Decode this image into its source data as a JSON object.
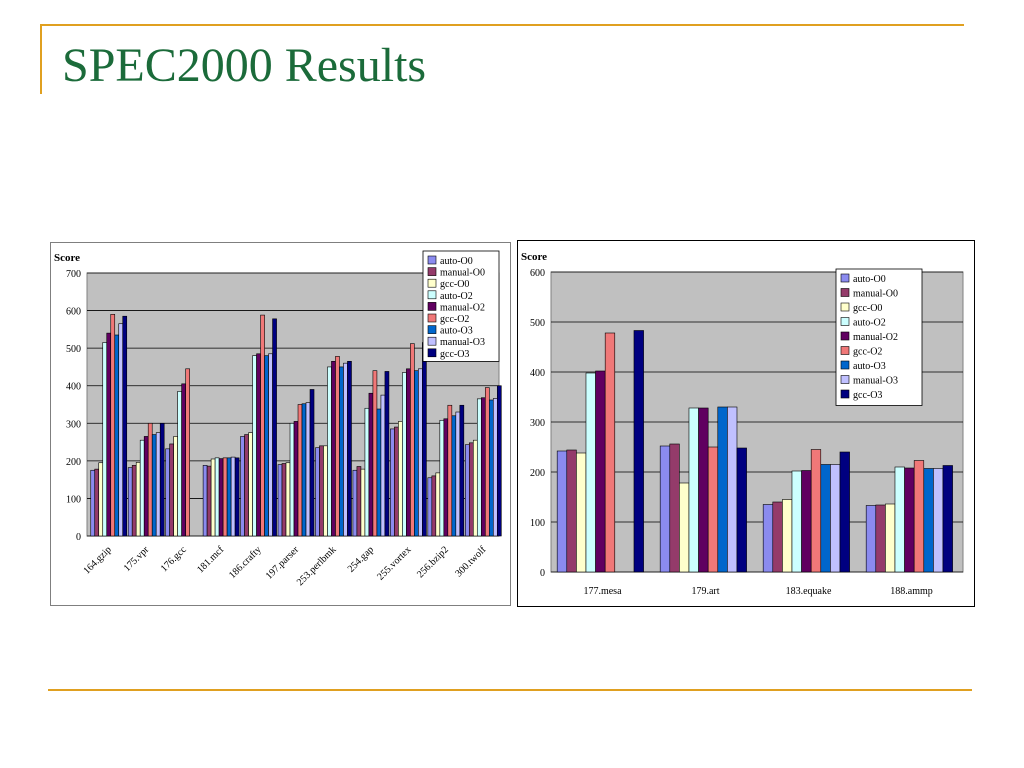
{
  "slide": {
    "title": "SPEC2000 Results"
  },
  "chart_data": [
    {
      "type": "bar",
      "ylabel": "Score",
      "ylim": [
        0,
        700
      ],
      "yticks": [
        0,
        100,
        200,
        300,
        400,
        500,
        600,
        700
      ],
      "grid": true,
      "legend_position": "top-right",
      "categories": [
        "164.gzip",
        "175.vpr",
        "176.gcc",
        "181.mcf",
        "186.crafty",
        "197.parser",
        "253.perlbmk",
        "254.gap",
        "255.vortex",
        "256.bzip2",
        "300.twolf"
      ],
      "series": [
        {
          "name": "auto-O0",
          "color": "#8b8bef",
          "values": [
            175,
            182,
            232,
            188,
            265,
            190,
            235,
            175,
            285,
            155,
            243
          ]
        },
        {
          "name": "manual-O0",
          "color": "#943b6a",
          "values": [
            178,
            188,
            245,
            186,
            270,
            193,
            240,
            185,
            290,
            160,
            248
          ]
        },
        {
          "name": "gcc-O0",
          "color": "#ffffcc",
          "values": [
            195,
            196,
            265,
            205,
            275,
            195,
            240,
            178,
            305,
            168,
            255
          ]
        },
        {
          "name": "auto-O2",
          "color": "#ccffff",
          "values": [
            515,
            255,
            385,
            208,
            480,
            300,
            450,
            340,
            435,
            308,
            365
          ]
        },
        {
          "name": "manual-O2",
          "color": "#600060",
          "values": [
            540,
            265,
            405,
            206,
            485,
            305,
            465,
            380,
            445,
            312,
            368
          ]
        },
        {
          "name": "gcc-O2",
          "color": "#f07878",
          "values": [
            590,
            300,
            445,
            208,
            588,
            350,
            478,
            440,
            512,
            348,
            395
          ]
        },
        {
          "name": "auto-O3",
          "color": "#0066cc",
          "values": [
            535,
            270,
            0,
            208,
            480,
            352,
            450,
            338,
            440,
            320,
            362
          ]
        },
        {
          "name": "manual-O3",
          "color": "#c0c0ff",
          "values": [
            565,
            275,
            0,
            210,
            485,
            355,
            460,
            375,
            445,
            330,
            366
          ]
        },
        {
          "name": "gcc-O3",
          "color": "#000080",
          "values": [
            585,
            300,
            0,
            208,
            578,
            390,
            465,
            438,
            515,
            348,
            400
          ]
        }
      ]
    },
    {
      "type": "bar",
      "ylabel": "Score",
      "ylim": [
        0,
        600
      ],
      "yticks": [
        0,
        100,
        200,
        300,
        400,
        500,
        600
      ],
      "grid": true,
      "legend_position": "top-right",
      "categories": [
        "177.mesa",
        "179.art",
        "183.equake",
        "188.ammp"
      ],
      "series": [
        {
          "name": "auto-O0",
          "color": "#8b8bef",
          "values": [
            242,
            252,
            135,
            133
          ]
        },
        {
          "name": "manual-O0",
          "color": "#943b6a",
          "values": [
            244,
            256,
            140,
            134
          ]
        },
        {
          "name": "gcc-O0",
          "color": "#ffffcc",
          "values": [
            238,
            178,
            145,
            136
          ]
        },
        {
          "name": "auto-O2",
          "color": "#ccffff",
          "values": [
            398,
            328,
            202,
            210
          ]
        },
        {
          "name": "manual-O2",
          "color": "#600060",
          "values": [
            402,
            328,
            203,
            208
          ]
        },
        {
          "name": "gcc-O2",
          "color": "#f07878",
          "values": [
            478,
            250,
            245,
            223
          ]
        },
        {
          "name": "auto-O3",
          "color": "#0066cc",
          "values": [
            0,
            330,
            215,
            207
          ]
        },
        {
          "name": "manual-O3",
          "color": "#c0c0ff",
          "values": [
            0,
            330,
            215,
            207
          ]
        },
        {
          "name": "gcc-O3",
          "color": "#000080",
          "values": [
            483,
            248,
            240,
            213
          ]
        }
      ]
    }
  ]
}
